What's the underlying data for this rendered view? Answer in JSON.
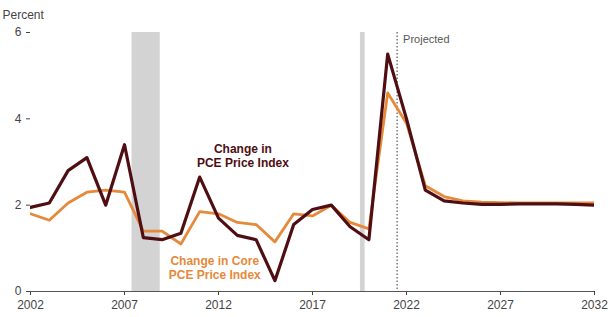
{
  "chart_data": {
    "type": "line",
    "y_label": "Percent",
    "x": [
      2002,
      2003,
      2004,
      2005,
      2006,
      2007,
      2008,
      2009,
      2010,
      2011,
      2012,
      2013,
      2014,
      2015,
      2016,
      2017,
      2018,
      2019,
      2020,
      2021,
      2022,
      2023,
      2024,
      2025,
      2026,
      2027,
      2028,
      2029,
      2030,
      2031,
      2032
    ],
    "series": [
      {
        "name": "Change in Core PCE Price Index",
        "color": "#e5893b",
        "values": [
          1.8,
          1.65,
          2.05,
          2.3,
          2.35,
          2.3,
          1.4,
          1.4,
          1.1,
          1.85,
          1.8,
          1.6,
          1.55,
          1.15,
          1.8,
          1.75,
          2.0,
          1.6,
          1.45,
          4.6,
          3.9,
          2.45,
          2.2,
          2.1,
          2.07,
          2.06,
          2.05,
          2.05,
          2.05,
          2.05,
          2.05
        ]
      },
      {
        "name": "Change in PCE Price Index",
        "color": "#4f0e12",
        "values": [
          1.95,
          2.05,
          2.8,
          3.1,
          2.0,
          3.4,
          1.25,
          1.2,
          1.35,
          2.65,
          1.7,
          1.3,
          1.2,
          0.25,
          1.55,
          1.9,
          2.0,
          1.5,
          1.2,
          5.5,
          4.0,
          2.35,
          2.1,
          2.05,
          2.02,
          2.02,
          2.03,
          2.03,
          2.03,
          2.02,
          2.0
        ]
      }
    ],
    "xlim": [
      2002,
      2032
    ],
    "xticks": [
      2002,
      2007,
      2012,
      2017,
      2022,
      2027,
      2032
    ],
    "ylim": [
      0,
      6
    ],
    "yticks": [
      0,
      2,
      4,
      6
    ],
    "grid": false,
    "shaded_periods": [
      {
        "start": 2007.4,
        "end": 2008.9
      },
      {
        "start": 2019.55,
        "end": 2019.8
      }
    ],
    "projection": {
      "x": 2021.5,
      "label": "Projected",
      "label_y": 5.85
    },
    "annotations": [
      {
        "text": "Change in\nPCE Price Index",
        "x": 2013.3,
        "y": 3.15,
        "color": "#4f0e12"
      },
      {
        "text": "Change in Core\nPCE Price Index",
        "x": 2011.8,
        "y": 0.55,
        "color": "#e5893b"
      }
    ]
  }
}
